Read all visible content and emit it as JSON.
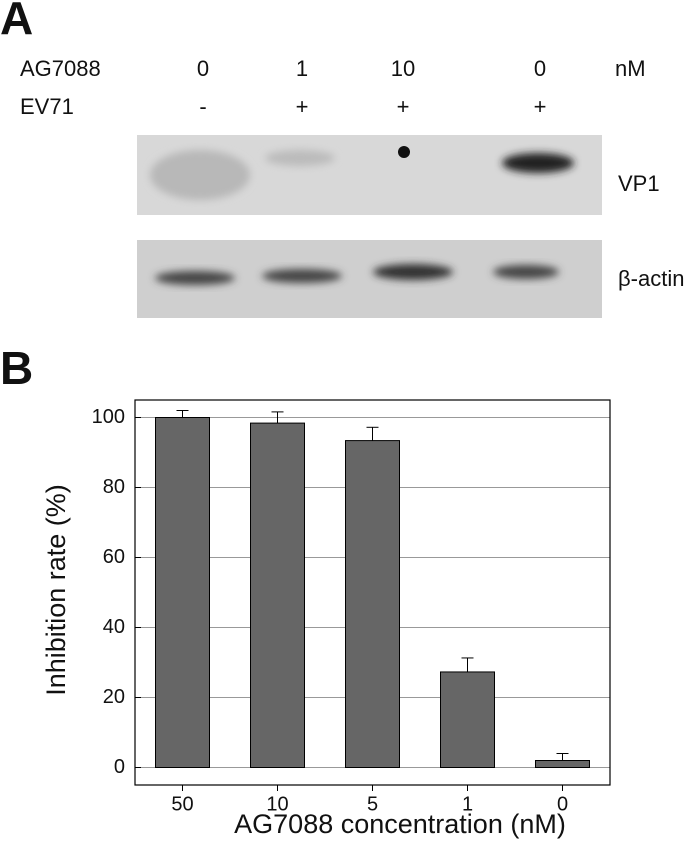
{
  "panel_a": {
    "label": "A",
    "rows": [
      {
        "name": "AG7088",
        "cells": [
          "0",
          "1",
          "10",
          "0"
        ],
        "unit": "nM"
      },
      {
        "name": "EV71",
        "cells": [
          "-",
          "+",
          "+",
          "+"
        ]
      }
    ],
    "bands": [
      "VP1",
      "β-actin"
    ]
  },
  "panel_b": {
    "label": "B"
  },
  "chart_data": {
    "type": "bar",
    "xlabel": "AG7088 concentration (nM)",
    "ylabel": "Inhibition rate (%)",
    "categories": [
      "50",
      "10",
      "5",
      "1",
      "0"
    ],
    "values": [
      100,
      98.4,
      93.4,
      27.3,
      2
    ],
    "errors": [
      2,
      3.2,
      3.8,
      4,
      2
    ],
    "color": "#666666",
    "ylim": [
      -5,
      105
    ],
    "yticks": [
      0,
      20,
      40,
      60,
      80,
      100
    ],
    "grid": true
  }
}
